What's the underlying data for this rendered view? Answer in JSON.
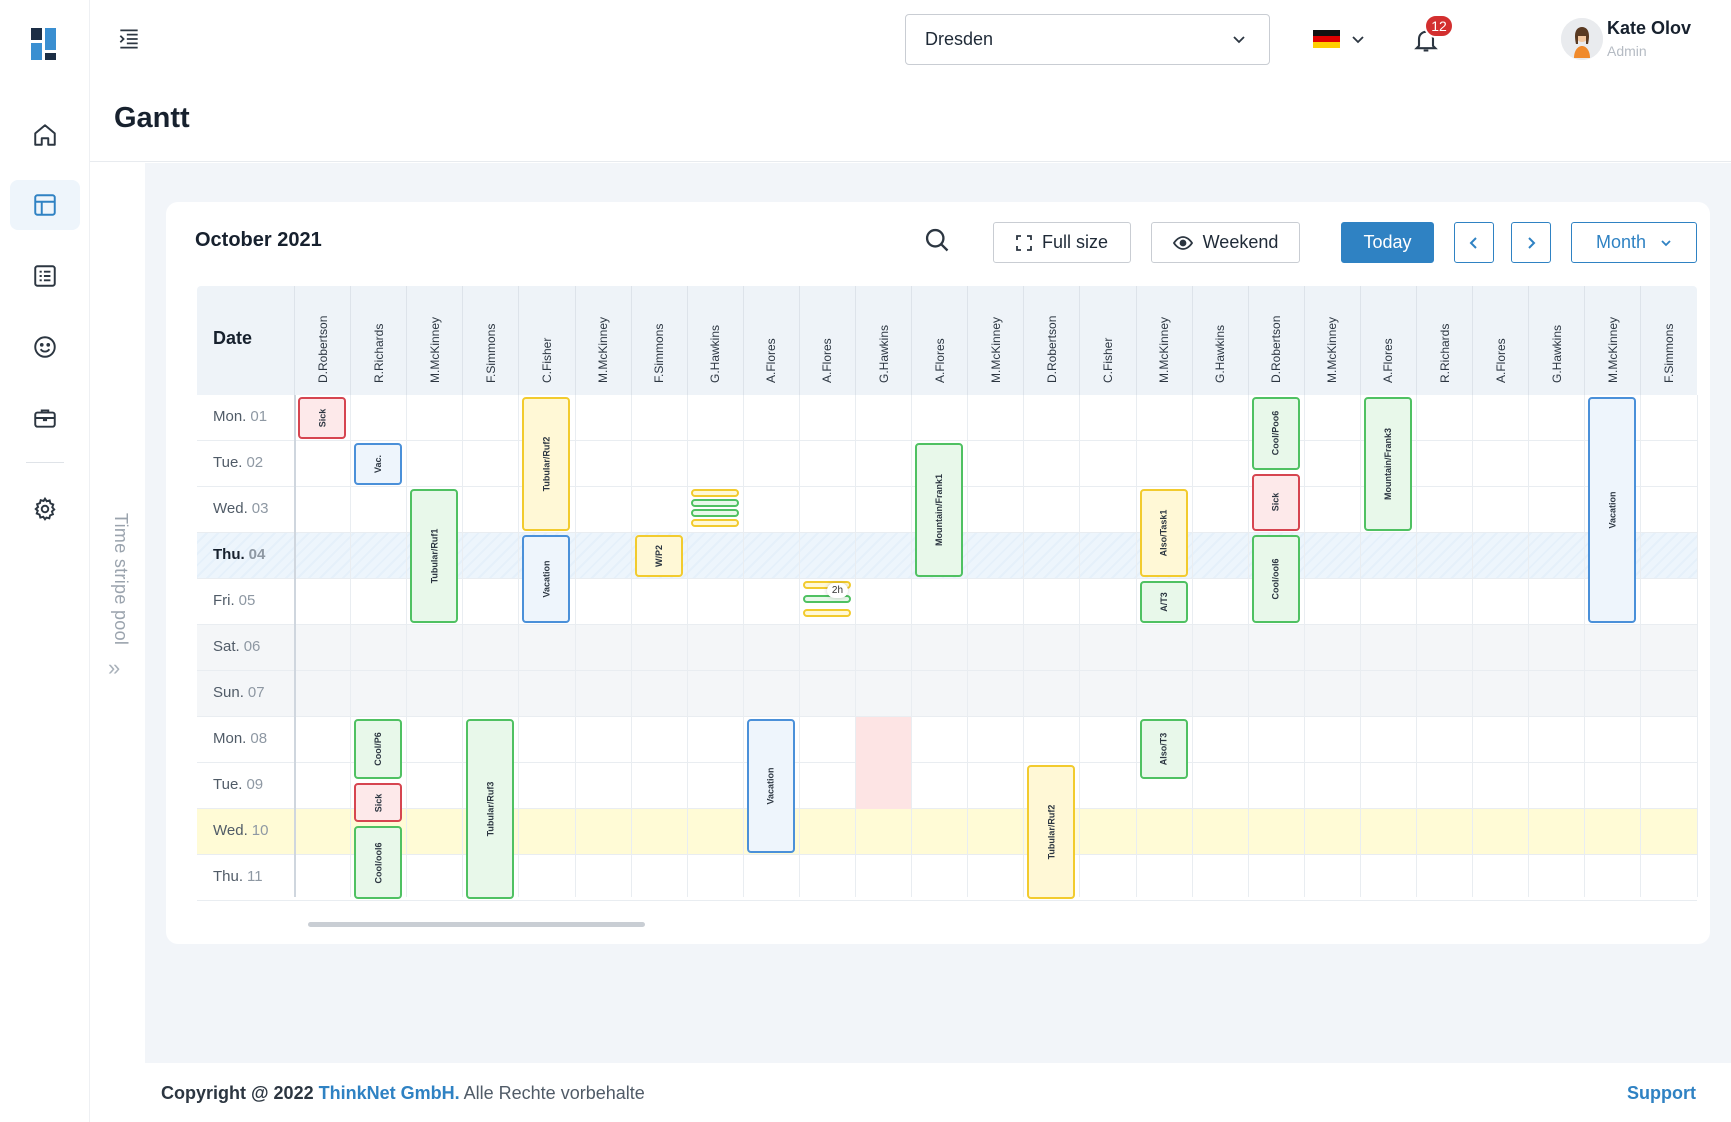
{
  "header": {
    "title": "Gantt",
    "location": "Dresden",
    "notifications_count": "12",
    "user_name": "Kate Olov",
    "user_role": "Admin"
  },
  "sidebar": {
    "items": [
      {
        "name": "home-icon"
      },
      {
        "name": "layout-icon",
        "active": true
      },
      {
        "name": "list-icon"
      },
      {
        "name": "smile-icon"
      },
      {
        "name": "briefcase-icon"
      },
      {
        "name": "gear-icon"
      }
    ]
  },
  "pool": {
    "label": "Time stripe pool"
  },
  "calendar": {
    "month": "October 2021",
    "full_size": "Full size",
    "weekend": "Weekend",
    "today": "Today",
    "view": "Month",
    "date_header": "Date",
    "columns": [
      "D.Robertson",
      "R.Richards",
      "M.McKinney",
      "F.Simmons",
      "C.Fisher",
      "M.McKinney",
      "F.Simmons",
      "G.Hawkins",
      "A.Flores",
      "A.Flores",
      "G.Hawkins",
      "A.Flores",
      "M.McKinney",
      "D.Robertson",
      "C.Fisher",
      "M.McKinney",
      "G.Hawkins",
      "D.Robertson",
      "M.McKinney",
      "A.Flores",
      "R.Richards",
      "A.Flores",
      "G.Hawkins",
      "M.McKinney",
      "F.Simmons"
    ],
    "rows": [
      {
        "day": "Mon.",
        "date": "01"
      },
      {
        "day": "Tue.",
        "date": "02"
      },
      {
        "day": "Wed.",
        "date": "03"
      },
      {
        "day": "Thu.",
        "date": "04",
        "current": true
      },
      {
        "day": "Fri.",
        "date": "05"
      },
      {
        "day": "Sat.",
        "date": "06",
        "weekend": true
      },
      {
        "day": "Sun.",
        "date": "07",
        "weekend": true
      },
      {
        "day": "Mon.",
        "date": "08"
      },
      {
        "day": "Tue.",
        "date": "09"
      },
      {
        "day": "Wed.",
        "date": "10",
        "highlight": true
      },
      {
        "day": "Thu.",
        "date": "11"
      }
    ],
    "events": [
      {
        "col": 0,
        "start": 0,
        "end": 1,
        "label": "Sick",
        "color": "red"
      },
      {
        "col": 1,
        "start": 1,
        "end": 2,
        "label": "Vac.",
        "color": "blue"
      },
      {
        "col": 2,
        "start": 2,
        "end": 5,
        "label": "Tubular/Ruf1",
        "color": "green"
      },
      {
        "col": 4,
        "start": 0,
        "end": 3,
        "label": "Tubular/Ruf2",
        "color": "yellow"
      },
      {
        "col": 4,
        "start": 3,
        "end": 5,
        "label": "Vacation",
        "color": "blue"
      },
      {
        "col": 6,
        "start": 3,
        "end": 4,
        "label": "W/P2",
        "color": "yellow"
      },
      {
        "col": 11,
        "start": 1,
        "end": 4,
        "label": "Mountain/Frank1",
        "color": "green"
      },
      {
        "col": 15,
        "start": 2,
        "end": 4,
        "label": "Also/Task1",
        "color": "yellow"
      },
      {
        "col": 15,
        "start": 4,
        "end": 5,
        "label": "A/T3",
        "color": "green"
      },
      {
        "col": 17,
        "start": 0,
        "end": 1.67,
        "label": "Cool/Poo6",
        "color": "green"
      },
      {
        "col": 17,
        "start": 1.67,
        "end": 3,
        "label": "Sick",
        "color": "red"
      },
      {
        "col": 17,
        "start": 3,
        "end": 5,
        "label": "Cool/ool6",
        "color": "green"
      },
      {
        "col": 19,
        "start": 0,
        "end": 3,
        "label": "Mountain/Frank3",
        "color": "green"
      },
      {
        "col": 23,
        "start": 0,
        "end": 5,
        "label": "Vacation",
        "color": "blue"
      },
      {
        "col": 1,
        "start": 7,
        "end": 8.4,
        "label": "Cool/P6",
        "color": "green"
      },
      {
        "col": 1,
        "start": 8.4,
        "end": 9.33,
        "label": "Sick",
        "color": "red"
      },
      {
        "col": 1,
        "start": 9.33,
        "end": 11,
        "label": "Cool/ool6",
        "color": "green"
      },
      {
        "col": 3,
        "start": 7,
        "end": 11,
        "label": "Tubular/Ruf3",
        "color": "green"
      },
      {
        "col": 8,
        "start": 7,
        "end": 10,
        "label": "Vacation",
        "color": "blue"
      },
      {
        "col": 15,
        "start": 7,
        "end": 8.4,
        "label": "Also/T3",
        "color": "green"
      },
      {
        "col": 13,
        "start": 8,
        "end": 11,
        "label": "Tubular/Ruf2",
        "color": "yellow"
      }
    ],
    "stripe_label": "2h"
  },
  "footer": {
    "copyright": "Copyright @ 2022",
    "company": "ThinkNet GmbH.",
    "rights": "Alle Rechte vorbehalte",
    "support": "Support"
  },
  "colors": {
    "accent": "#2f82c3",
    "red": "#d64550",
    "green": "#4fc162",
    "yellow": "#f2cb2e",
    "blue": "#4a90d9"
  }
}
